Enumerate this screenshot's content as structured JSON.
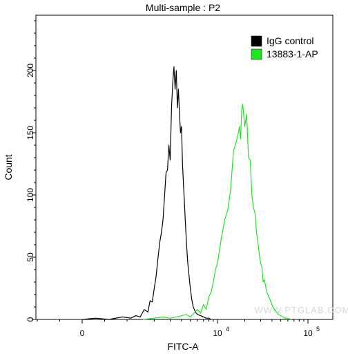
{
  "chart_data": {
    "type": "line",
    "title": "Multi-sample : P2",
    "xlabel": "FITC-A",
    "ylabel": "Count",
    "xscale": "biexponential",
    "ylim": [
      0,
      240
    ],
    "yticks": [
      0,
      50,
      100,
      150,
      200
    ],
    "xticks": [
      {
        "value": 0,
        "label": "0",
        "exp": ""
      },
      {
        "value": 10000,
        "label": "10",
        "exp": "4"
      },
      {
        "value": 100000,
        "label": "10",
        "exp": "5"
      }
    ],
    "grid": false,
    "legend_position": "top-right",
    "watermark": "WWW.PTGLAB.COM",
    "series": [
      {
        "name": "IgG control",
        "color": "#000000",
        "x": [
          0,
          300,
          600,
          900,
          1100,
          1250,
          1400,
          1550,
          1700,
          1800,
          1900,
          2000,
          2100,
          2200,
          2300,
          2400,
          2500,
          2600,
          2700,
          2800,
          2900,
          3000,
          3100,
          3200,
          3300,
          3400,
          3500,
          3600,
          3700,
          3800,
          3900,
          4000,
          4100,
          4200,
          4300,
          4400,
          4550,
          4700,
          4850,
          5000,
          5200,
          5400,
          5700,
          6000,
          6500,
          7000,
          7500,
          8000,
          8500
        ],
        "y": [
          0,
          1,
          0,
          2,
          1,
          3,
          2,
          8,
          6,
          15,
          14,
          25,
          35,
          50,
          62,
          70,
          80,
          100,
          118,
          120,
          140,
          128,
          170,
          190,
          203,
          185,
          200,
          170,
          185,
          165,
          150,
          155,
          125,
          110,
          95,
          80,
          60,
          45,
          35,
          25,
          16,
          10,
          6,
          4,
          3,
          2,
          1,
          1,
          0
        ]
      },
      {
        "name": "13883-1-AP",
        "color": "#1fe61f",
        "x": [
          1500,
          2000,
          2500,
          3000,
          3500,
          4000,
          4500,
          5000,
          5500,
          6000,
          6500,
          7000,
          7500,
          8000,
          8500,
          9000,
          9500,
          10000,
          11000,
          12000,
          13000,
          14000,
          15000,
          16000,
          17000,
          17500,
          18000,
          18500,
          19000,
          20000,
          21000,
          22000,
          23000,
          24000,
          25000,
          26000,
          27000,
          28000,
          29000,
          30000,
          31000,
          32000,
          33000,
          35000,
          37000,
          39000,
          41000,
          43000,
          45000,
          47000,
          50000,
          53000,
          56000,
          60000,
          65000
        ],
        "y": [
          0,
          1,
          2,
          1,
          2,
          3,
          4,
          2,
          5,
          8,
          5,
          12,
          8,
          18,
          22,
          30,
          40,
          45,
          65,
          80,
          88,
          105,
          135,
          142,
          150,
          155,
          145,
          168,
          173,
          155,
          165,
          130,
          128,
          100,
          90,
          85,
          70,
          62,
          52,
          45,
          42,
          30,
          32,
          22,
          18,
          14,
          10,
          8,
          6,
          4,
          3,
          2,
          1,
          1,
          0
        ]
      }
    ]
  }
}
